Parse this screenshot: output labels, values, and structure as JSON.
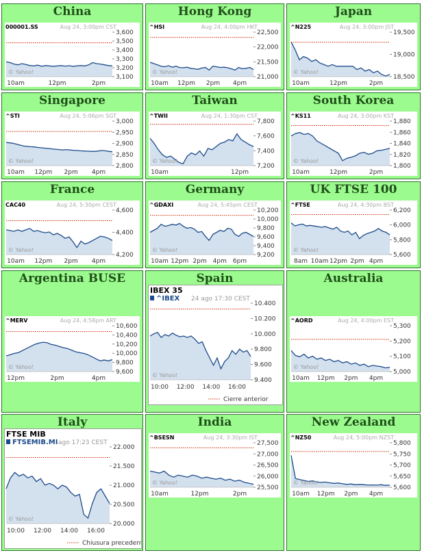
{
  "colors": {
    "cell_bg": "#9cfb8e",
    "title": "#1f4f1a",
    "line": "#1b4a8a",
    "fill": "#d3e0ee",
    "prev_close": "#cc2200"
  },
  "watermark": "© Yahoo!",
  "chart_data": [
    {
      "type": "area",
      "title": "China",
      "ticker": "000001.SS",
      "date": "Aug 24, 3:00pm CST",
      "yticks": [
        "3,600",
        "3,500",
        "3,400",
        "3,300",
        "3,200",
        "3,100"
      ],
      "ylim": [
        3050,
        3650
      ],
      "xticks": [
        "10am",
        "12pm",
        "2pm"
      ],
      "prev_close": 3507,
      "y": [
        3250,
        3240,
        3220,
        3210,
        3225,
        3215,
        3200,
        3195,
        3205,
        3190,
        3200,
        3195,
        3190,
        3195,
        3200,
        3192,
        3198,
        3190,
        3195,
        3200,
        3195,
        3210,
        3240,
        3225,
        3220,
        3210,
        3200,
        3195
      ]
    },
    {
      "type": "area",
      "title": "Hong Kong",
      "ticker": "^HSI",
      "date": "Aug 24, 4:00pm HKT",
      "yticks": [
        "22,500",
        "22,000",
        "21,500",
        "21,000"
      ],
      "ylim": [
        20900,
        22600
      ],
      "xticks": [
        "10am",
        "12pm",
        "2pm",
        "4pm"
      ],
      "prev_close": 22400,
      "y": [
        21450,
        21400,
        21350,
        21300,
        21280,
        21320,
        21260,
        21300,
        21250,
        21240,
        21260,
        21220,
        21200,
        21180,
        21230,
        21250,
        21150,
        21300,
        21280,
        21250,
        21260,
        21240,
        21200,
        21150,
        21250,
        21200,
        21220,
        21250,
        21170
      ]
    },
    {
      "type": "area",
      "title": "Japan",
      "ticker": "^N225",
      "date": "Aug 24, 3:00pm JST",
      "yticks": [
        "19,500",
        "19,000",
        "18,500"
      ],
      "ylim": [
        18380,
        19750
      ],
      "xticks": [
        "10am",
        "12pm",
        "2pm"
      ],
      "prev_close": 19440,
      "y": [
        19450,
        19200,
        18900,
        19000,
        18950,
        18850,
        18900,
        18800,
        18750,
        18700,
        18750,
        18700,
        18700,
        18700,
        18700,
        18700,
        18600,
        18650,
        18550,
        18600,
        18500,
        18550,
        18450,
        18400,
        18450
      ]
    },
    {
      "type": "area",
      "title": "Singapore",
      "ticker": "^STI",
      "date": "Aug 24, 5:06pm SGT",
      "yticks": [
        "3,000",
        "2,950",
        "2,900",
        "2,850",
        "2,800"
      ],
      "ylim": [
        2770,
        3020
      ],
      "xticks": [
        "10am",
        "12pm",
        "2pm",
        "4pm"
      ],
      "prev_close": 2962,
      "y": [
        2900,
        2898,
        2895,
        2890,
        2885,
        2880,
        2878,
        2876,
        2875,
        2872,
        2870,
        2868,
        2866,
        2864,
        2862,
        2860,
        2858,
        2860,
        2858,
        2856,
        2855,
        2853,
        2852,
        2851,
        2850,
        2850,
        2852,
        2855,
        2853,
        2850,
        2848
      ]
    },
    {
      "type": "area",
      "title": "Taiwan",
      "ticker": "^TWII",
      "date": "Aug 24, 1:30pm CST",
      "yticks": [
        "7,800",
        "7,600",
        "7,400",
        "7,200"
      ],
      "ylim": [
        7150,
        7850
      ],
      "xticks": [
        "10am",
        "12pm"
      ],
      "prev_close": 7800,
      "y": [
        7580,
        7500,
        7400,
        7320,
        7280,
        7300,
        7250,
        7200,
        7180,
        7300,
        7350,
        7320,
        7380,
        7300,
        7420,
        7400,
        7450,
        7500,
        7520,
        7560,
        7540,
        7650,
        7560,
        7520,
        7480,
        7450
      ]
    },
    {
      "type": "area",
      "title": "South Korea",
      "ticker": "^KS11",
      "date": "Aug 24, 3:00pm KST",
      "yticks": [
        "1,880",
        "1,860",
        "1,840",
        "1,820",
        "1,800"
      ],
      "ylim": [
        1795,
        1885
      ],
      "xticks": [
        "10am",
        "12pm",
        "2pm"
      ],
      "prev_close": 1876,
      "y": [
        1855,
        1860,
        1862,
        1858,
        1860,
        1855,
        1845,
        1840,
        1835,
        1830,
        1825,
        1820,
        1805,
        1810,
        1812,
        1815,
        1820,
        1822,
        1818,
        1820,
        1825,
        1826,
        1828,
        1830
      ]
    },
    {
      "type": "area",
      "title": "France",
      "ticker": "CAC40",
      "date": "Aug 24, 5:30pm CEST",
      "yticks": [
        "4,600",
        "4,400",
        "4,200"
      ],
      "ylim": [
        4150,
        4780
      ],
      "xticks": [
        "10am",
        "12pm",
        "2pm",
        "4pm"
      ],
      "prev_close": 4630,
      "y": [
        4500,
        4490,
        4480,
        4500,
        4480,
        4500,
        4520,
        4480,
        4490,
        4470,
        4460,
        4470,
        4430,
        4450,
        4420,
        4380,
        4400,
        4330,
        4250,
        4340,
        4300,
        4320,
        4350,
        4380,
        4410,
        4400,
        4380,
        4350
      ]
    },
    {
      "type": "area",
      "title": "Germany",
      "ticker": "^GDAXI",
      "date": "Aug 24, 5:45pm CEST",
      "yticks": [
        "10,200",
        "10,000",
        "9,800",
        "9,600",
        "9,400",
        "9,200"
      ],
      "ylim": [
        9150,
        10250
      ],
      "xticks": [
        "10am",
        "12pm",
        "2pm",
        "4pm",
        "6pm"
      ],
      "prev_close": 10120,
      "y": [
        9700,
        9750,
        9800,
        9900,
        9850,
        9870,
        9900,
        9880,
        9920,
        9850,
        9800,
        9820,
        9780,
        9700,
        9720,
        9600,
        9500,
        9650,
        9700,
        9750,
        9720,
        9800,
        9780,
        9650,
        9600,
        9680,
        9700,
        9650,
        9600
      ]
    },
    {
      "type": "area",
      "title": "UK FTSE 100",
      "ticker": "^FTSE",
      "date": "Aug 24, 4:30pm BST",
      "yticks": [
        "6,200",
        "6,000",
        "5,800",
        "5,600"
      ],
      "ylim": [
        5550,
        6250
      ],
      "xticks": [
        "8am",
        "10am",
        "12pm",
        "2pm",
        "4pm"
      ],
      "prev_close": 6180,
      "y": [
        6050,
        6000,
        6020,
        6030,
        6000,
        6010,
        6000,
        5990,
        5980,
        5990,
        5970,
        5950,
        5980,
        5920,
        5900,
        5920,
        5860,
        5900,
        5800,
        5850,
        5880,
        5900,
        5920,
        5960,
        5920,
        5900,
        5860
      ]
    },
    {
      "type": "area",
      "title": "Argentina BUSE",
      "ticker": "^MERV",
      "date": "Aug 24, 4:58pm ART",
      "yticks": [
        "10,600",
        "10,400",
        "10,200",
        "10,000",
        "9,800",
        "9,600"
      ],
      "ylim": [
        9540,
        10650
      ],
      "xticks": [
        "12pm",
        "2pm",
        "4pm"
      ],
      "prev_close": 10510,
      "y": [
        9920,
        9950,
        9980,
        10000,
        10050,
        10100,
        10150,
        10200,
        10230,
        10250,
        10240,
        10200,
        10180,
        10150,
        10120,
        10100,
        10060,
        10020,
        10000,
        9980,
        9950,
        9900,
        9850,
        9800,
        9820,
        9800,
        9830
      ]
    },
    {
      "type": "area",
      "big": true,
      "title": "Spain",
      "header": "IBEX 35",
      "ticker": "^IBEX",
      "date": "24 ago 17:30 CEST",
      "yticks": [
        "10.400",
        "10.200",
        "10.000",
        "9.800",
        "9.600",
        "9.400"
      ],
      "ylim": [
        9400,
        10450
      ],
      "xticks": [
        "10:00",
        "12:00",
        "14:00",
        "16:00"
      ],
      "legend": "Cierre anterior",
      "prev_close": 10370,
      "y": [
        10000,
        10030,
        10050,
        9980,
        10020,
        10000,
        10040,
        10010,
        9990,
        10000,
        9980,
        10000,
        9960,
        9900,
        9920,
        9800,
        9700,
        9600,
        9700,
        9550,
        9650,
        9700,
        9800,
        9750,
        9820,
        9780,
        9800,
        9720
      ]
    },
    {
      "type": "area",
      "title": "Australia",
      "ticker": "^AORD",
      "date": "Aug 24, 4:00pm EST",
      "yticks": [
        "5,300",
        "5,200",
        "5,100",
        "5,000"
      ],
      "ylim": [
        4970,
        5340
      ],
      "xticks": [
        "10am",
        "12pm",
        "2pm",
        "4pm"
      ],
      "prev_close": 5230,
      "y": [
        5140,
        5100,
        5090,
        5110,
        5080,
        5095,
        5070,
        5080,
        5060,
        5070,
        5050,
        5060,
        5040,
        5050,
        5030,
        5040,
        5020,
        5030,
        5010,
        5020,
        5015,
        5010,
        5000,
        5005
      ]
    },
    {
      "type": "area",
      "big": true,
      "title": "Italy",
      "header": "FTSE MIB",
      "ticker": "FTSEMIB.MI",
      "date": "ago 17:23 CEST",
      "yticks": [
        "22.000",
        "21.500",
        "21.000",
        "20.500",
        "20.000"
      ],
      "ylim": [
        19950,
        22050
      ],
      "xticks": [
        "10:00",
        "12:00",
        "14:00",
        "16:00"
      ],
      "legend": "Chiusura precedente",
      "prev_close": 21760,
      "y": [
        20900,
        21200,
        21350,
        21250,
        21300,
        21200,
        21250,
        21100,
        21180,
        21000,
        21050,
        21000,
        20900,
        21000,
        20950,
        20800,
        20700,
        20750,
        20200,
        20100,
        20500,
        20800,
        20900,
        20700,
        20500
      ]
    },
    {
      "type": "area",
      "title": "India",
      "ticker": "^BSESN",
      "date": "Aug 24, 3:30pm IST",
      "yticks": [
        "27,500",
        "27,000",
        "26,500",
        "26,000",
        "25,500"
      ],
      "ylim": [
        25400,
        27600
      ],
      "xticks": [
        "10am",
        "12pm",
        "2pm"
      ],
      "prev_close": 27350,
      "y": [
        26200,
        26150,
        26100,
        26200,
        26000,
        25900,
        26000,
        25950,
        25900,
        26000,
        25950,
        25850,
        25900,
        25850,
        25800,
        25850,
        25750,
        25800,
        25700,
        25750,
        25650,
        25600,
        25550
      ]
    },
    {
      "type": "area",
      "title": "New Zealand",
      "ticker": "^NZ50",
      "date": "Aug 24, 5:00pm NZST",
      "yticks": [
        "5,800",
        "5,750",
        "5,700",
        "5,650",
        "5,600"
      ],
      "ylim": [
        5585,
        5815
      ],
      "xticks": [
        "10am",
        "12pm",
        "2pm",
        "4pm"
      ],
      "prev_close": 5770,
      "y": [
        5750,
        5630,
        5625,
        5620,
        5615,
        5618,
        5612,
        5610,
        5612,
        5608,
        5605,
        5607,
        5603,
        5600,
        5602,
        5598,
        5600,
        5598,
        5596,
        5597,
        5596,
        5598,
        5595,
        5596
      ]
    }
  ]
}
